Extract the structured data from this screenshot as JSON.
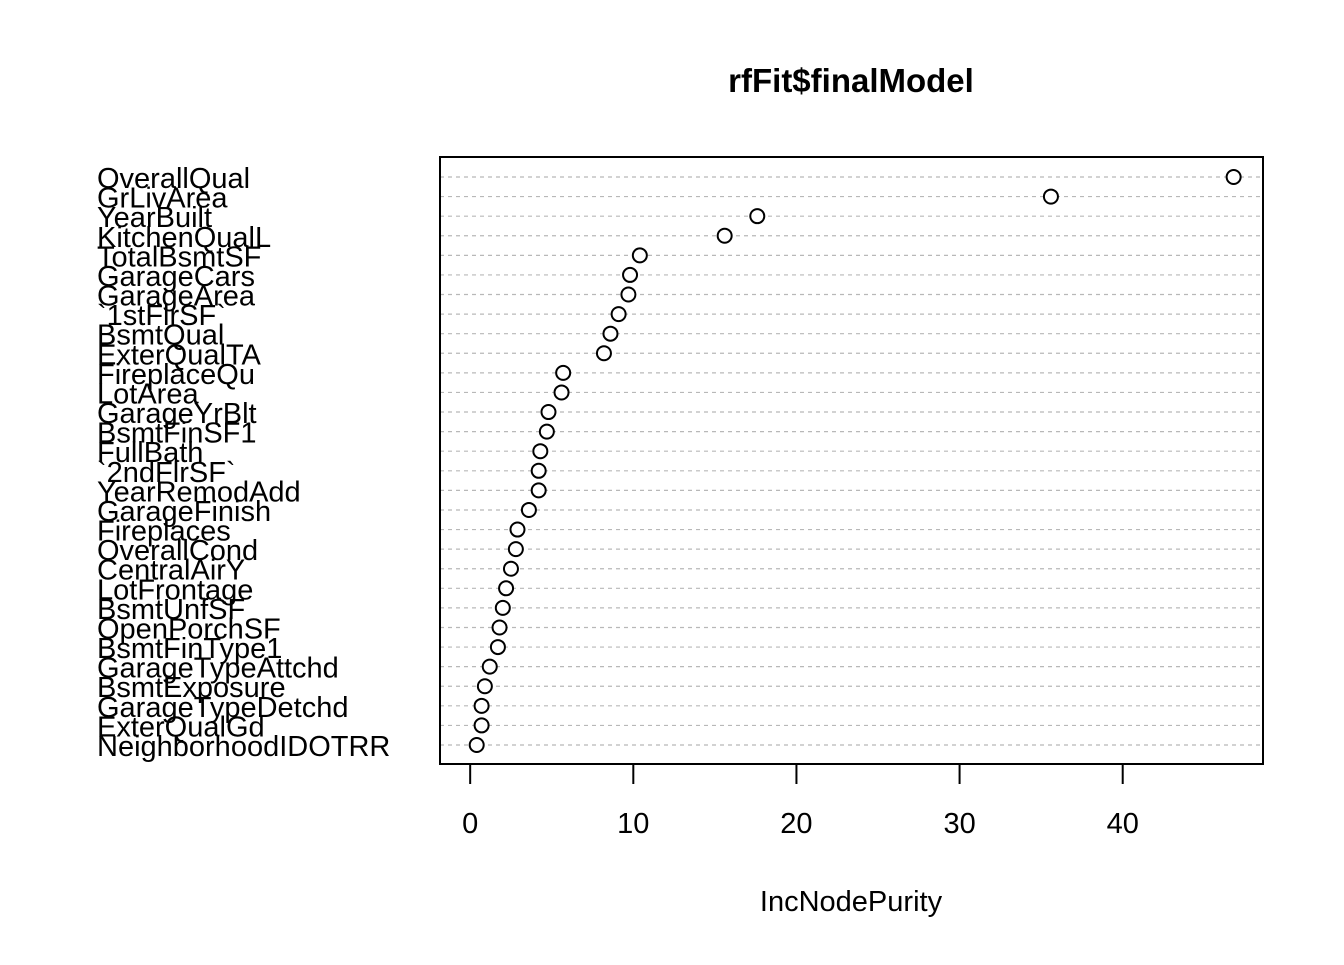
{
  "chart_data": {
    "type": "scatter",
    "title": "rfFit$finalModel",
    "xlabel": "IncNodePurity",
    "ylabel": "",
    "xlim": [
      -1.85,
      48.6
    ],
    "xticks": [
      "0",
      "10",
      "20",
      "30",
      "40"
    ],
    "grid": "horizontal dashed reference lines",
    "categories": [
      "OverallQual",
      "GrLivArea",
      "YearBuilt",
      "KitchenQualL",
      "TotalBsmtSF",
      "GarageCars",
      "GarageArea",
      "`1stFlrSF`",
      "BsmtQual",
      "ExterQualTA",
      "FireplaceQu",
      "LotArea",
      "GarageYrBlt",
      "BsmtFinSF1",
      "FullBath",
      "`2ndFlrSF`",
      "YearRemodAdd",
      "GarageFinish",
      "Fireplaces",
      "OverallCond",
      "CentralAirY",
      "LotFrontage",
      "BsmtUnfSF",
      "OpenPorchSF",
      "BsmtFinType1",
      "GarageTypeAttchd",
      "BsmtExposure",
      "GarageTypeDetchd",
      "ExterQualGd",
      "NeighborhoodIDOTRR"
    ],
    "values": [
      46.8,
      35.6,
      17.6,
      15.6,
      10.4,
      9.8,
      9.7,
      9.1,
      8.6,
      8.2,
      5.7,
      5.6,
      4.8,
      4.7,
      4.3,
      4.2,
      4.2,
      3.6,
      2.9,
      2.8,
      2.5,
      2.2,
      2.0,
      1.8,
      1.7,
      1.2,
      0.9,
      0.7,
      0.7,
      0.4
    ]
  }
}
